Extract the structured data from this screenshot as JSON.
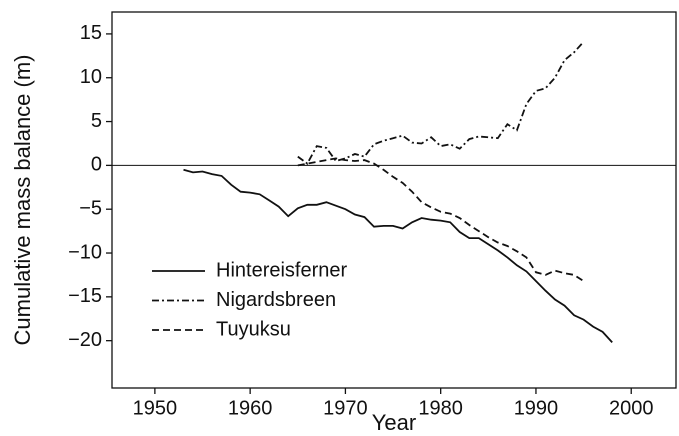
{
  "chart_data": {
    "type": "line",
    "xlabel": "Year",
    "ylabel": "Cumulative mass balance (m)",
    "xlim": [
      1945.5,
      2004.7
    ],
    "xticks": [
      1950,
      1960,
      1970,
      1980,
      1990,
      2000
    ],
    "ylim": [
      -25.4,
      17.5
    ],
    "yticks": [
      {
        "value": -20,
        "label": "−20"
      },
      {
        "value": -15,
        "label": "−15"
      },
      {
        "value": -10,
        "label": "−10"
      },
      {
        "value": -5,
        "label": "−5"
      },
      0,
      5,
      10,
      15
    ],
    "legend": "lower left",
    "series": [
      {
        "name": "Hintereisferner",
        "color": "#111111",
        "dash": "solid",
        "x": [
          1953,
          1954,
          1955,
          1956,
          1957,
          1958,
          1959,
          1960,
          1961,
          1962,
          1963,
          1964,
          1965,
          1966,
          1967,
          1968,
          1969,
          1970,
          1971,
          1972,
          1973,
          1974,
          1975,
          1976,
          1977,
          1978,
          1979,
          1980,
          1981,
          1982,
          1983,
          1984,
          1985,
          1986,
          1987,
          1988,
          1989,
          1990,
          1991,
          1992,
          1993,
          1994,
          1995,
          1996,
          1997,
          1998
        ],
        "values": [
          -0.5,
          -0.8,
          -0.7,
          -1.0,
          -1.2,
          -2.2,
          -3.0,
          -3.1,
          -3.3,
          -4.0,
          -4.7,
          -5.8,
          -4.9,
          -4.5,
          -4.5,
          -4.2,
          -4.6,
          -5.0,
          -5.6,
          -5.9,
          -7.0,
          -6.9,
          -6.9,
          -7.2,
          -6.5,
          -6.0,
          -6.2,
          -6.3,
          -6.5,
          -7.6,
          -8.3,
          -8.3,
          -9.0,
          -9.7,
          -10.5,
          -11.4,
          -12.1,
          -13.2,
          -14.3,
          -15.3,
          -16.0,
          -17.1,
          -17.6,
          -18.4,
          -19.0,
          -20.2
        ]
      },
      {
        "name": "Nigardsbreen",
        "color": "#111111",
        "dash": "dashdot",
        "x": [
          1965,
          1966,
          1967,
          1968,
          1969,
          1970,
          1971,
          1972,
          1973,
          1974,
          1975,
          1976,
          1977,
          1978,
          1979,
          1980,
          1981,
          1982,
          1983,
          1984,
          1985,
          1986,
          1987,
          1988,
          1989,
          1990,
          1991,
          1992,
          1993,
          1994,
          1995
        ],
        "values": [
          1.0,
          0.2,
          2.2,
          2.0,
          0.5,
          0.8,
          1.3,
          1.0,
          2.4,
          2.8,
          3.1,
          3.4,
          2.6,
          2.5,
          3.2,
          2.2,
          2.4,
          1.9,
          3.0,
          3.3,
          3.2,
          3.1,
          4.7,
          4.0,
          7.0,
          8.5,
          8.8,
          10.0,
          12.0,
          12.9,
          14.1
        ]
      },
      {
        "name": "Tuyuksu",
        "color": "#111111",
        "dash": "dashed",
        "x": [
          1965,
          1966,
          1967,
          1968,
          1969,
          1970,
          1971,
          1972,
          1973,
          1974,
          1975,
          1976,
          1977,
          1978,
          1979,
          1980,
          1981,
          1982,
          1983,
          1984,
          1985,
          1986,
          1987,
          1988,
          1989,
          1990,
          1991,
          1992,
          1993,
          1994,
          1995
        ],
        "values": [
          0.0,
          0.2,
          0.4,
          0.6,
          0.8,
          0.6,
          0.5,
          0.6,
          0.2,
          -0.5,
          -1.3,
          -2.0,
          -3.0,
          -4.2,
          -4.8,
          -5.3,
          -5.5,
          -6.0,
          -6.8,
          -7.5,
          -8.2,
          -8.8,
          -9.2,
          -9.8,
          -10.5,
          -12.2,
          -12.5,
          -12.0,
          -12.3,
          -12.5,
          -13.2
        ]
      }
    ]
  }
}
